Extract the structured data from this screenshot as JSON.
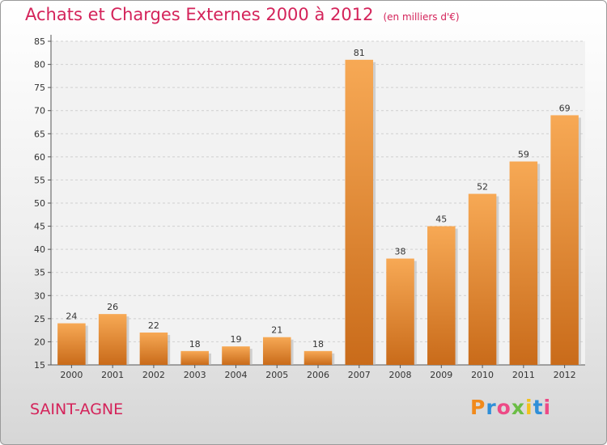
{
  "header": {
    "title": "Achats et Charges Externes 2000 à 2012",
    "subtitle": "(en milliers d'€)"
  },
  "footer": {
    "place": "SAINT-AGNE",
    "logo": "Proxiti"
  },
  "colors": {
    "title": "#d4235a",
    "bar_light": "#f7a955",
    "bar_dark": "#c96b1a",
    "logo_letters": [
      "#f18a1b",
      "#2f8fd8",
      "#ed4a86",
      "#6bbd45",
      "#f3c11e",
      "#2f8fd8",
      "#ed4a86"
    ]
  },
  "chart_data": {
    "type": "bar",
    "categories": [
      "2000",
      "2001",
      "2002",
      "2003",
      "2004",
      "2005",
      "2006",
      "2007",
      "2008",
      "2009",
      "2010",
      "2011",
      "2012"
    ],
    "values": [
      24,
      26,
      22,
      18,
      19,
      21,
      18,
      81,
      38,
      45,
      52,
      59,
      69
    ],
    "data_labels": [
      "24",
      "26",
      "22",
      "18",
      "19",
      "21",
      "18",
      "81",
      "38",
      "45",
      "52",
      "59",
      "69"
    ],
    "yticks": [
      "15",
      "20",
      "25",
      "30",
      "35",
      "40",
      "45",
      "50",
      "55",
      "60",
      "65",
      "70",
      "75",
      "80",
      "85"
    ],
    "ylim": [
      15,
      85
    ],
    "grid": true
  }
}
